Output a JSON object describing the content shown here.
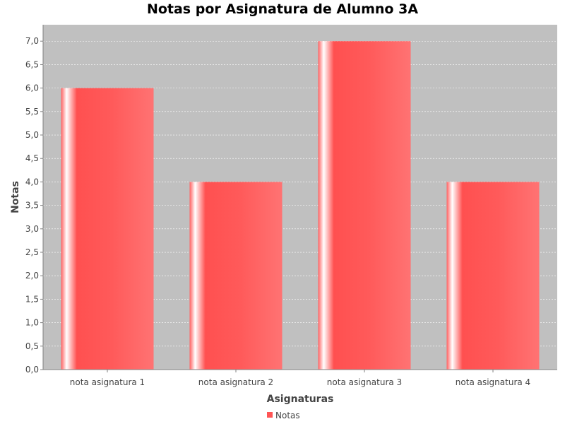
{
  "chart_data": {
    "type": "bar",
    "title": "Notas por Asignatura de Alumno 3A",
    "xlabel": "Asignaturas",
    "ylabel": "Notas",
    "categories": [
      "nota asignatura 1",
      "nota asignatura 2",
      "nota asignatura 3",
      "nota asignatura 4"
    ],
    "series": [
      {
        "name": "Notas",
        "values": [
          6.0,
          4.0,
          7.0,
          4.0
        ]
      }
    ],
    "ylim": [
      0,
      7.35
    ],
    "yticks": [
      "0,0",
      "0,5",
      "1,0",
      "1,5",
      "2,0",
      "2,5",
      "3,0",
      "3,5",
      "4,0",
      "4,5",
      "5,0",
      "5,5",
      "6,0",
      "6,5",
      "7,0"
    ],
    "ytick_values": [
      0,
      0.5,
      1,
      1.5,
      2,
      2.5,
      3,
      3.5,
      4,
      4.5,
      5,
      5.5,
      6,
      6.5,
      7
    ],
    "grid": true,
    "legend": "bottom-center",
    "colors": {
      "bar": "#ff5555",
      "plot_bg": "#c0c0c0",
      "grid": "#ffffff"
    }
  }
}
